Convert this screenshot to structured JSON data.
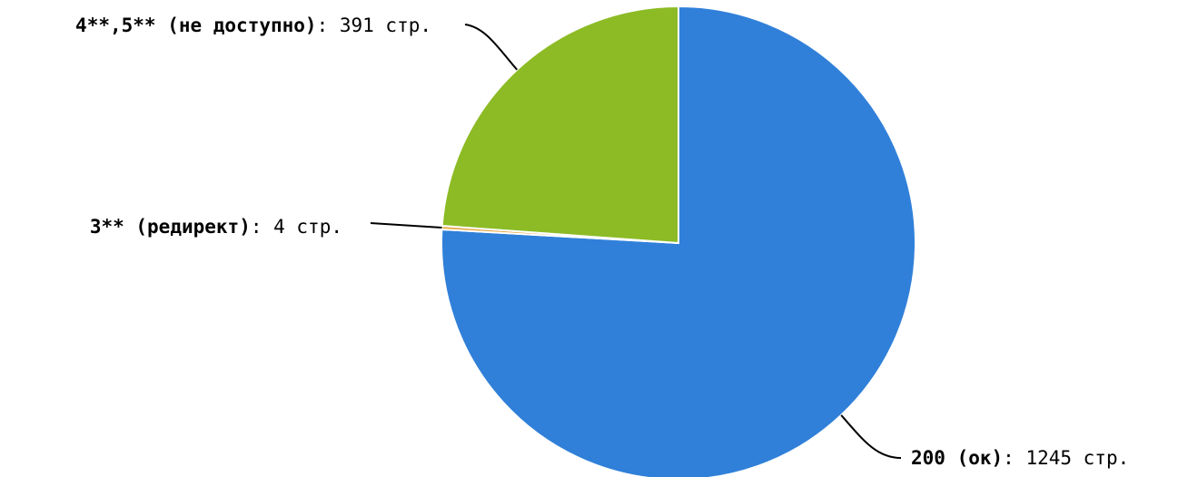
{
  "chart_data": {
    "type": "pie",
    "unit": "стр.",
    "slices": [
      {
        "name": "200 (ок)",
        "value": 1245,
        "color": "#3080d9"
      },
      {
        "name": "3** (редирект)",
        "value": 4,
        "color": "#e8a33d"
      },
      {
        "name": "4**,5** (не доступно)",
        "value": 391,
        "color": "#8cbb25"
      }
    ],
    "start_angle_deg": 0,
    "direction": "clockwise",
    "label_style": "external-with-leader-lines"
  }
}
